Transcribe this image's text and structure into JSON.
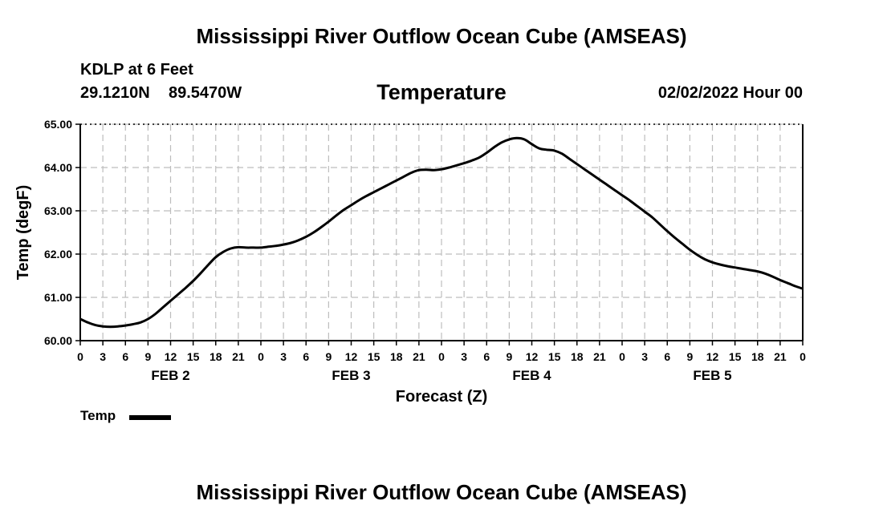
{
  "header": {
    "title": "Mississippi River Outflow Ocean Cube (AMSEAS)",
    "station": "KDLP at 6 Feet",
    "lat": "29.1210N",
    "lon": "89.5470W",
    "variable": "Temperature",
    "date": "02/02/2022 Hour 00"
  },
  "footer": {
    "title": "Mississippi River Outflow Ocean Cube (AMSEAS)"
  },
  "legend": {
    "label": "Temp",
    "color": "#000000"
  },
  "chart_data": {
    "type": "line",
    "title": "Temperature",
    "xlabel": "Forecast (Z)",
    "ylabel": "Temp (degF)",
    "ylim": [
      60.0,
      65.0
    ],
    "yticks": [
      "60.00",
      "61.00",
      "62.00",
      "63.00",
      "64.00",
      "65.00"
    ],
    "xlim": [
      0,
      96
    ],
    "xtick_labels": [
      "0",
      "3",
      "6",
      "9",
      "12",
      "15",
      "18",
      "21",
      "0",
      "3",
      "6",
      "9",
      "12",
      "15",
      "18",
      "21",
      "0",
      "3",
      "6",
      "9",
      "12",
      "15",
      "18",
      "21",
      "0",
      "3",
      "6",
      "9",
      "12",
      "15",
      "18",
      "21",
      "0"
    ],
    "day_labels": [
      {
        "label": "FEB 2",
        "hour": 12
      },
      {
        "label": "FEB 3",
        "hour": 36
      },
      {
        "label": "FEB 4",
        "hour": 60
      },
      {
        "label": "FEB 5",
        "hour": 84
      }
    ],
    "grid": true,
    "series": [
      {
        "name": "Temp",
        "x": [
          0,
          1,
          2,
          3,
          4,
          5,
          6,
          7,
          8,
          9,
          10,
          11,
          12,
          13,
          14,
          15,
          16,
          17,
          18,
          19,
          20,
          21,
          22,
          23,
          24,
          25,
          26,
          27,
          28,
          29,
          30,
          31,
          32,
          33,
          34,
          35,
          36,
          37,
          38,
          39,
          40,
          41,
          42,
          43,
          44,
          45,
          46,
          47,
          48,
          49,
          50,
          51,
          52,
          53,
          54,
          55,
          56,
          57,
          58,
          59,
          60,
          61,
          62,
          63,
          64,
          65,
          66,
          67,
          68,
          69,
          70,
          71,
          72,
          73,
          74,
          75,
          76,
          77,
          78,
          79,
          80,
          81,
          82,
          83,
          84,
          85,
          86,
          87,
          88,
          89,
          90,
          91,
          92,
          93,
          94,
          95,
          96
        ],
        "values": [
          60.5,
          60.42,
          60.36,
          60.33,
          60.32,
          60.33,
          60.35,
          60.38,
          60.42,
          60.5,
          60.62,
          60.77,
          60.92,
          61.07,
          61.22,
          61.38,
          61.56,
          61.75,
          61.93,
          62.05,
          62.13,
          62.16,
          62.15,
          62.15,
          62.15,
          62.17,
          62.19,
          62.22,
          62.26,
          62.32,
          62.4,
          62.5,
          62.62,
          62.75,
          62.89,
          63.02,
          63.13,
          63.24,
          63.34,
          63.43,
          63.52,
          63.61,
          63.7,
          63.79,
          63.88,
          63.94,
          63.95,
          63.94,
          63.96,
          64.0,
          64.05,
          64.1,
          64.16,
          64.23,
          64.34,
          64.47,
          64.58,
          64.65,
          64.68,
          64.65,
          64.54,
          64.44,
          64.41,
          64.39,
          64.32,
          64.2,
          64.08,
          63.96,
          63.84,
          63.72,
          63.6,
          63.48,
          63.36,
          63.24,
          63.11,
          62.98,
          62.85,
          62.69,
          62.53,
          62.38,
          62.24,
          62.1,
          61.98,
          61.88,
          61.81,
          61.76,
          61.72,
          61.69,
          61.66,
          61.63,
          61.6,
          61.55,
          61.48,
          61.4,
          61.33,
          61.26,
          61.2
        ]
      }
    ]
  }
}
